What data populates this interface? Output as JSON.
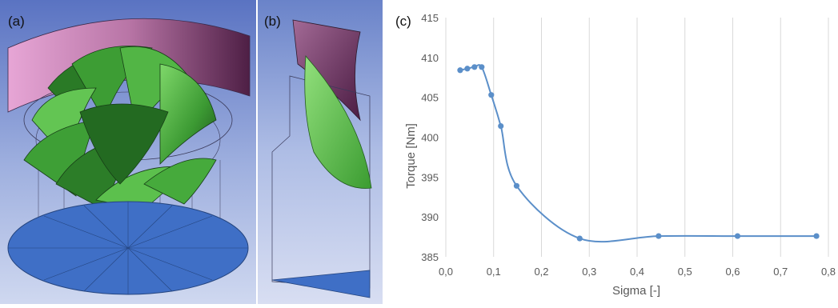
{
  "panels": {
    "a": {
      "label": "(a)"
    },
    "b": {
      "label": "(b)"
    },
    "c": {
      "label": "(c)"
    }
  },
  "colors": {
    "line": "#5b8fc9",
    "grid": "#d9d9d9",
    "render_bg_top": "#5b78c7",
    "render_bg_bottom": "#c9d3ee",
    "shroud_pink": "#d58cc0",
    "shroud_dark": "#6a2f5c",
    "blade_green": "#4caf3c",
    "blade_dark": "#1f5e1f",
    "hub_blue": "#3f6fc6"
  },
  "chart_data": {
    "type": "line",
    "title": "",
    "xlabel": "Sigma [-]",
    "ylabel": "Torque [Nm]",
    "xlim": [
      0.0,
      0.8
    ],
    "ylim": [
      385,
      415
    ],
    "xticks": [
      0.0,
      0.1,
      0.2,
      0.3,
      0.4,
      0.5,
      0.6,
      0.7,
      0.8
    ],
    "xtick_labels": [
      "0,0",
      "0,1",
      "0,2",
      "0,3",
      "0,4",
      "0,5",
      "0,6",
      "0,7",
      "0,8"
    ],
    "yticks": [
      385,
      390,
      395,
      400,
      405,
      410,
      415
    ],
    "ytick_labels": [
      "385",
      "390",
      "395",
      "400",
      "405",
      "410",
      "415"
    ],
    "grid": "vertical",
    "legend": "none",
    "series": [
      {
        "x": [
          0.03,
          0.045,
          0.06,
          0.075,
          0.095,
          0.115,
          0.148,
          0.28,
          0.445,
          0.61,
          0.775
        ],
        "y": [
          408.4,
          408.6,
          408.8,
          408.8,
          405.3,
          401.4,
          393.9,
          387.3,
          387.6,
          387.6,
          387.6
        ]
      }
    ]
  }
}
